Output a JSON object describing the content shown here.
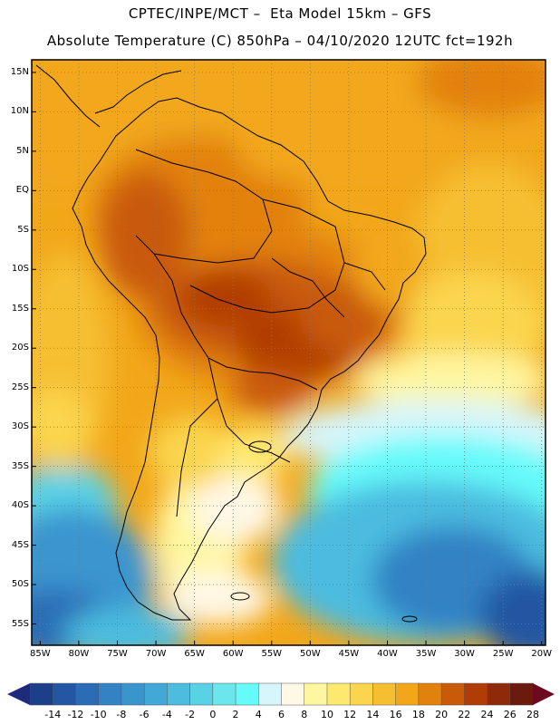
{
  "header": {
    "line1": "CPTEC/INPE/MCT –  Eta Model 15km – GFS",
    "line2": "Absolute Temperature (C) 850hPa – 04/10/2020 12UTC fct=192h"
  },
  "map": {
    "lat_labels": [
      "15N",
      "10N",
      "5N",
      "EQ",
      "5S",
      "10S",
      "15S",
      "20S",
      "25S",
      "30S",
      "35S",
      "40S",
      "45S",
      "50S",
      "55S"
    ],
    "lon_labels": [
      "85W",
      "80W",
      "75W",
      "70W",
      "65W",
      "60W",
      "55W",
      "50W",
      "45W",
      "40W",
      "35W",
      "30W",
      "25W",
      "20W"
    ]
  },
  "colorbar": {
    "labels": [
      "-14",
      "-12",
      "-10",
      "-8",
      "-6",
      "-4",
      "-2",
      "0",
      "2",
      "4",
      "6",
      "8",
      "10",
      "12",
      "14",
      "16",
      "18",
      "20",
      "22",
      "24",
      "26",
      "28"
    ],
    "colors": [
      "#1c3f8a",
      "#2457a3",
      "#2a6db6",
      "#3382c4",
      "#3a95cf",
      "#41a8d8",
      "#4cbcdf",
      "#5ad2e6",
      "#6ae6ec",
      "#66fbfb",
      "#d7f6fb",
      "#fff8e6",
      "#fff6a0",
      "#ffe870",
      "#fbd54d",
      "#f6bf32",
      "#f2a71a",
      "#e2820c",
      "#c95a08",
      "#b13d06",
      "#8e2a0a",
      "#6c1a0c"
    ],
    "under_color": "#202a7a",
    "over_color": "#6e0a1e"
  }
}
